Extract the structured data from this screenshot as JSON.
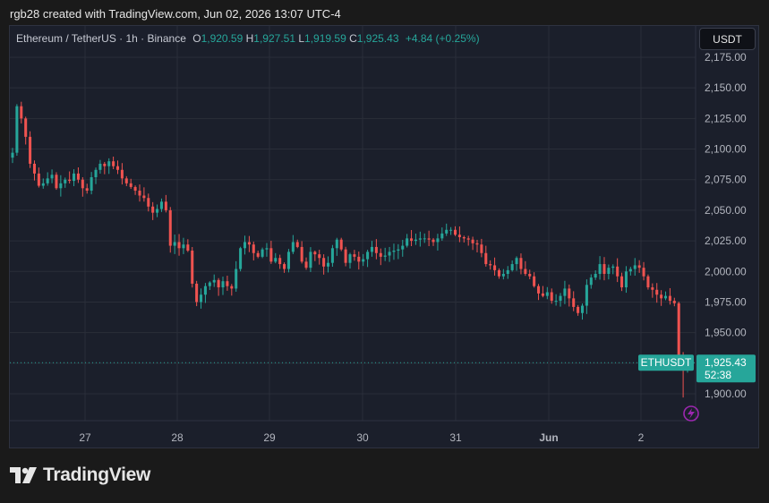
{
  "caption": "rgb28 created with TradingView.com, Jun 02, 2026 13:07 UTC-4",
  "legend": {
    "symbol": "Ethereum / TetherUS · 1h · Binance",
    "o_label": "O",
    "o": "1,920.59",
    "h_label": "H",
    "h": "1,927.51",
    "l_label": "L",
    "l": "1,919.59",
    "c_label": "C",
    "c": "1,925.43",
    "change": "+4.84 (+0.25%)"
  },
  "unit": "USDT",
  "last_price": {
    "label": "ETHUSDT",
    "price": "1,925.43",
    "countdown": "52:38"
  },
  "brand": "TradingView",
  "colors": {
    "up": "#26a69a",
    "down": "#ef5350",
    "background": "#1b1f2b",
    "grid": "#2a2e39",
    "axis_text": "#b2b5be",
    "accent": "#9c27b0"
  },
  "chart_data": {
    "type": "candlestick",
    "title": "Ethereum / TetherUS · 1h · Binance",
    "grid": true,
    "y_axis": {
      "position": "right",
      "ticks": [
        "2,175.00",
        "2,150.00",
        "2,125.00",
        "2,100.00",
        "2,075.00",
        "2,050.00",
        "2,025.00",
        "2,000.00",
        "1,975.00",
        "1,950.00",
        "1,925.00",
        "1,900.00"
      ],
      "ylim": [
        1883,
        2193
      ]
    },
    "x_axis": {
      "labels": [
        "27",
        "28",
        "29",
        "30",
        "31",
        "Jun",
        "2"
      ]
    },
    "close_series": [
      2097,
      2135,
      2125,
      2110,
      2088,
      2080,
      2070,
      2072,
      2076,
      2079,
      2068,
      2072,
      2075,
      2074,
      2080,
      2075,
      2068,
      2066,
      2077,
      2083,
      2088,
      2086,
      2090,
      2086,
      2083,
      2076,
      2072,
      2069,
      2066,
      2062,
      2060,
      2053,
      2048,
      2051,
      2057,
      2050,
      2021,
      2024,
      2019,
      2022,
      2017,
      1990,
      1975,
      1981,
      1988,
      1991,
      1993,
      1987,
      1992,
      1988,
      1986,
      2002,
      2019,
      2024,
      2022,
      2015,
      2012,
      2018,
      2019,
      2008,
      2011,
      2006,
      2002,
      2016,
      2024,
      2020,
      2008,
      2003,
      2016,
      2014,
      2011,
      2004,
      2007,
      2019,
      2026,
      2018,
      2007,
      2014,
      2012,
      2008,
      2010,
      2016,
      2020,
      2015,
      2012,
      2013,
      2016,
      2017,
      2018,
      2021,
      2027,
      2025,
      2026,
      2027,
      2027,
      2026,
      2024,
      2027,
      2031,
      2034,
      2034,
      2030,
      2028,
      2027,
      2026,
      2023,
      2022,
      2015,
      2006,
      2005,
      2001,
      1996,
      1998,
      2001,
      2006,
      2011,
      2002,
      1998,
      1996,
      1988,
      1982,
      1980,
      1983,
      1976,
      1976,
      1980,
      1986,
      1978,
      1971,
      1966,
      1972,
      1989,
      1995,
      1998,
      2006,
      1998,
      2003,
      2004,
      1996,
      1987,
      2000,
      2002,
      2005,
      2003,
      1996,
      1987,
      1985,
      1981,
      1978,
      1980,
      1976,
      1974,
      1931,
      1922,
      1925.43
    ]
  }
}
